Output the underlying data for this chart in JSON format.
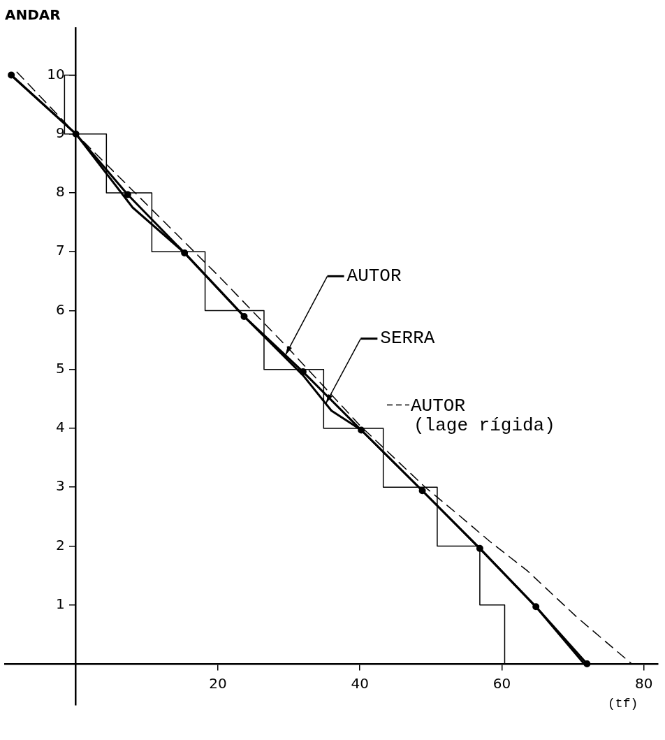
{
  "chart_data": {
    "type": "line",
    "xlabel": "(tf)",
    "ylabel": "ANDAR",
    "xlim": [
      -10,
      82
    ],
    "ylim": [
      -0.7,
      10.8
    ],
    "xticks": [
      20,
      40,
      60,
      80
    ],
    "yticks": [
      1,
      2,
      3,
      4,
      5,
      6,
      7,
      8,
      9,
      10
    ],
    "grid": false,
    "legend": "right",
    "series": [
      {
        "color": "#000000",
        "line_style": "solid",
        "marker": "none",
        "x": [
          0,
          -1.6,
          -1.6,
          4.3,
          4.3,
          10.7,
          10.7,
          18.2,
          18.2,
          26.5,
          26.5,
          34.9,
          34.9,
          43.3,
          43.3,
          50.9,
          50.9,
          56.9,
          56.9,
          60.4,
          60.4
        ],
        "values": [
          10,
          10,
          9,
          9,
          8,
          8,
          7,
          7,
          6,
          6,
          5,
          5,
          4,
          4,
          3,
          3,
          2,
          2,
          1,
          1,
          0
        ]
      },
      {
        "name": "AUTOR",
        "color": "#000000",
        "line_style": "solid",
        "marker": "circle",
        "x": [
          -9.1,
          0,
          7.3,
          15.3,
          23.7,
          32,
          40.2,
          48.8,
          56.9,
          64.8,
          72
        ],
        "values": [
          10,
          9,
          7.97,
          6.98,
          5.9,
          4.96,
          3.97,
          2.94,
          1.96,
          0.97,
          0
        ]
      },
      {
        "name": "SERRA",
        "color": "#000000",
        "line_style": "solid",
        "marker": "none",
        "x": [
          -8.7,
          0,
          8,
          15.3,
          23.7,
          32,
          36,
          40.2,
          48.8,
          56.9,
          64.8,
          71.6
        ],
        "values": [
          9.95,
          9,
          7.75,
          6.98,
          5.9,
          4.9,
          4.3,
          3.97,
          2.94,
          1.96,
          0.97,
          0
        ]
      },
      {
        "name": "AUTOR\n(lage rígida)",
        "color": "#000000",
        "line_style": "dashed",
        "marker": "none",
        "x": [
          -8.3,
          0,
          10,
          20,
          30,
          40,
          49.2,
          53.8,
          58.3,
          63.6,
          70.6,
          78.3
        ],
        "values": [
          10.05,
          9,
          7.8,
          6.6,
          5.35,
          4.05,
          3,
          2.54,
          2.08,
          1.58,
          0.79,
          0
        ]
      }
    ]
  }
}
